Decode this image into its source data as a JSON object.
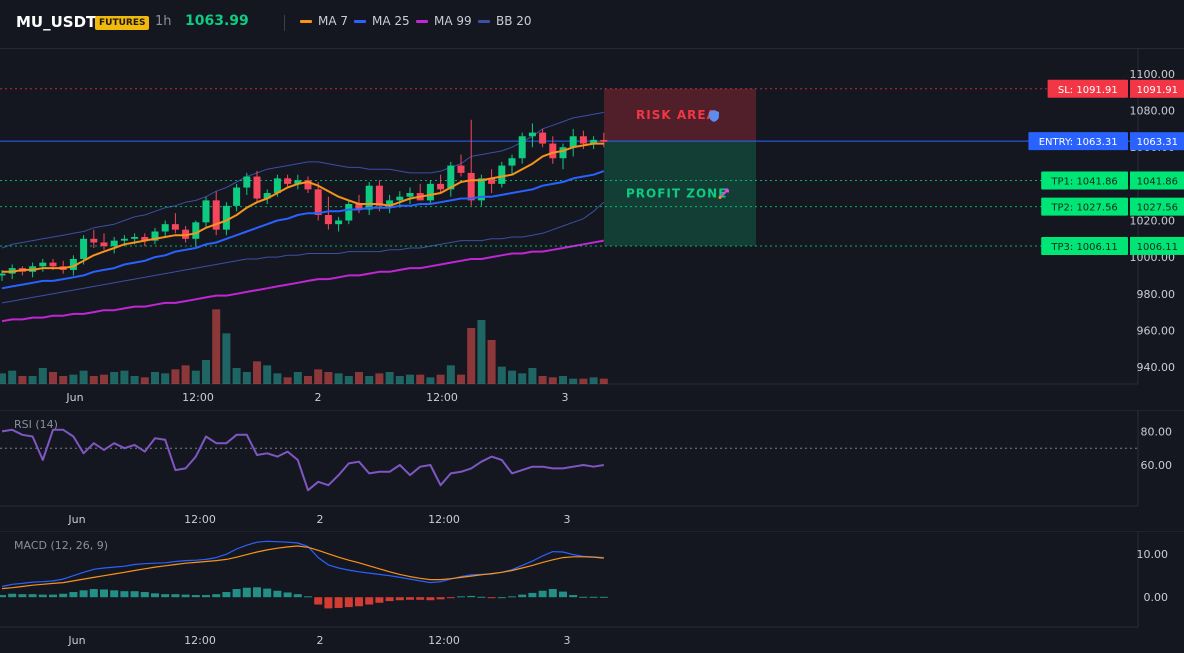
{
  "header": {
    "symbol": "MU_USDT",
    "badge": "FUTURES",
    "timeframe": "1h",
    "last_price": "1063.99",
    "indicators": [
      {
        "label": "MA 7",
        "color": "#f7931a"
      },
      {
        "label": "MA 25",
        "color": "#2962ff"
      },
      {
        "label": "MA 99",
        "color": "#c026d3"
      },
      {
        "label": "BB 20",
        "color": "#3b4fa3"
      }
    ]
  },
  "price_axis": {
    "ticks": [
      "1100.00",
      "1080.00",
      "1060.00",
      "1040.00",
      "1020.00",
      "1000.00",
      "980.00",
      "960.00",
      "940.00"
    ],
    "min": 934,
    "max": 1106
  },
  "time_axis": [
    "Jun",
    "12:00",
    "2",
    "12:00",
    "3"
  ],
  "levels": [
    {
      "name": "sl",
      "label": "SL: 1091.91",
      "price": "1091.91",
      "value": 1091.91,
      "color": "#f23645",
      "style": "dotted"
    },
    {
      "name": "entry",
      "label": "ENTRY: 1063.31",
      "price": "1063.31",
      "value": 1063.31,
      "color": "#2962ff",
      "style": "solid"
    },
    {
      "name": "tp1",
      "label": "TP1: 1041.86",
      "price": "1041.86",
      "value": 1041.86,
      "color": "#00e676",
      "style": "dotted"
    },
    {
      "name": "tp2",
      "label": "TP2: 1027.56",
      "price": "1027.56",
      "value": 1027.56,
      "color": "#00e676",
      "style": "dotted"
    },
    {
      "name": "tp3",
      "label": "TP3: 1006.11",
      "price": "1006.11",
      "value": 1006.11,
      "color": "#00e676",
      "style": "dotted"
    }
  ],
  "zones": {
    "risk": {
      "label": "RISK AREA",
      "icon": "shield-icon",
      "color": "#f23645"
    },
    "profit": {
      "label": "PROFIT ZONE",
      "icon": "rocket-icon",
      "color": "#0ecb81"
    }
  },
  "rsi": {
    "title": "RSI (14)",
    "ticks": [
      "80.00",
      "60.00"
    ],
    "min": 38,
    "max": 88,
    "level": 70,
    "color": "#7e57c2",
    "values": [
      80,
      81,
      78,
      77,
      63,
      81,
      81,
      77,
      67,
      73,
      69,
      73,
      70,
      72,
      68,
      76,
      75,
      57,
      58,
      65,
      77,
      73,
      73,
      78,
      78,
      66,
      67,
      65,
      68,
      63,
      45,
      50,
      48,
      54,
      61,
      62,
      55,
      56,
      56,
      60,
      54,
      59,
      60,
      48,
      55,
      56,
      58,
      62,
      65,
      63,
      55,
      57,
      59,
      59,
      58,
      58,
      59,
      60,
      59,
      60
    ]
  },
  "macd": {
    "title": "MACD (12, 26, 9)",
    "ticks": [
      "10.00",
      "0.00"
    ],
    "min": -6,
    "max": 14,
    "macd_color": "#2962ff",
    "signal_color": "#f7931a",
    "hist_up_color": "#26a69a",
    "hist_down_color": "#f44336"
  },
  "chart_data": {
    "type": "candlestick",
    "series": [
      {
        "name": "MA 7",
        "color": "#f7931a"
      },
      {
        "name": "MA 25",
        "color": "#2962ff"
      },
      {
        "name": "MA 99",
        "color": "#c026d3"
      },
      {
        "name": "BB 20",
        "color": "#3b4fa3"
      }
    ],
    "candles": [
      [
        990,
        993,
        987,
        991
      ],
      [
        991,
        996,
        988,
        994
      ],
      [
        994,
        995,
        990,
        992
      ],
      [
        992,
        997,
        989,
        995
      ],
      [
        995,
        999,
        992,
        997
      ],
      [
        997,
        999,
        993,
        995
      ],
      [
        995,
        998,
        991,
        993
      ],
      [
        993,
        1001,
        990,
        999
      ],
      [
        999,
        1012,
        996,
        1010
      ],
      [
        1010,
        1015,
        1005,
        1008
      ],
      [
        1008,
        1013,
        1004,
        1006
      ],
      [
        1006,
        1011,
        1002,
        1009
      ],
      [
        1009,
        1012,
        1006,
        1010
      ],
      [
        1010,
        1013,
        1007,
        1011
      ],
      [
        1011,
        1013,
        1006,
        1009
      ],
      [
        1009,
        1016,
        1007,
        1014
      ],
      [
        1014,
        1020,
        1011,
        1018
      ],
      [
        1018,
        1024,
        1013,
        1015
      ],
      [
        1015,
        1017,
        1008,
        1010
      ],
      [
        1010,
        1020,
        1006,
        1019
      ],
      [
        1019,
        1033,
        1016,
        1031
      ],
      [
        1031,
        1036,
        1012,
        1015
      ],
      [
        1015,
        1030,
        1012,
        1028
      ],
      [
        1028,
        1040,
        1025,
        1038
      ],
      [
        1038,
        1046,
        1034,
        1044
      ],
      [
        1044,
        1047,
        1030,
        1032
      ],
      [
        1032,
        1037,
        1029,
        1035
      ],
      [
        1035,
        1045,
        1033,
        1043
      ],
      [
        1043,
        1045,
        1038,
        1040
      ],
      [
        1040,
        1045,
        1037,
        1042
      ],
      [
        1042,
        1044,
        1035,
        1037
      ],
      [
        1037,
        1041,
        1020,
        1023
      ],
      [
        1023,
        1033,
        1015,
        1018
      ],
      [
        1018,
        1022,
        1014,
        1020
      ],
      [
        1020,
        1031,
        1018,
        1029
      ],
      [
        1029,
        1034,
        1024,
        1026
      ],
      [
        1026,
        1041,
        1023,
        1039
      ],
      [
        1039,
        1042,
        1025,
        1028
      ],
      [
        1028,
        1034,
        1024,
        1031
      ],
      [
        1031,
        1036,
        1027,
        1033
      ],
      [
        1033,
        1038,
        1029,
        1035
      ],
      [
        1035,
        1040,
        1031,
        1031
      ],
      [
        1031,
        1042,
        1029,
        1040
      ],
      [
        1040,
        1045,
        1035,
        1037
      ],
      [
        1037,
        1052,
        1033,
        1050
      ],
      [
        1050,
        1056,
        1044,
        1046
      ],
      [
        1046,
        1075,
        1028,
        1031
      ],
      [
        1031,
        1045,
        1028,
        1043
      ],
      [
        1043,
        1048,
        1035,
        1040
      ],
      [
        1040,
        1052,
        1038,
        1050
      ],
      [
        1050,
        1056,
        1045,
        1054
      ],
      [
        1054,
        1068,
        1051,
        1066
      ],
      [
        1066,
        1073,
        1060,
        1068
      ],
      [
        1068,
        1070,
        1060,
        1062
      ],
      [
        1062,
        1066,
        1051,
        1054
      ],
      [
        1054,
        1062,
        1048,
        1060
      ],
      [
        1060,
        1070,
        1055,
        1066
      ],
      [
        1066,
        1069,
        1059,
        1062
      ],
      [
        1062,
        1066,
        1059,
        1064
      ],
      [
        1064,
        1068,
        1060,
        1063
      ]
    ],
    "ma7": [
      992,
      992,
      993,
      993,
      994,
      994,
      994,
      995,
      998,
      1001,
      1003,
      1005,
      1007,
      1008,
      1009,
      1010,
      1011,
      1012,
      1012,
      1013,
      1016,
      1018,
      1020,
      1023,
      1027,
      1030,
      1032,
      1035,
      1038,
      1040,
      1041,
      1039,
      1036,
      1033,
      1031,
      1029,
      1029,
      1029,
      1028,
      1030,
      1032,
      1033,
      1034,
      1035,
      1038,
      1041,
      1042,
      1042,
      1043,
      1044,
      1045,
      1048,
      1051,
      1055,
      1057,
      1058,
      1060,
      1061,
      1062,
      1062
    ],
    "ma25": [
      983,
      984,
      985,
      986,
      987,
      987,
      988,
      989,
      990,
      992,
      993,
      994,
      996,
      997,
      998,
      1000,
      1001,
      1003,
      1004,
      1005,
      1007,
      1008,
      1010,
      1012,
      1014,
      1016,
      1018,
      1020,
      1021,
      1023,
      1024,
      1024,
      1025,
      1025,
      1026,
      1026,
      1027,
      1027,
      1027,
      1028,
      1028,
      1029,
      1029,
      1030,
      1031,
      1032,
      1032,
      1033,
      1033,
      1034,
      1035,
      1036,
      1037,
      1039,
      1040,
      1041,
      1043,
      1044,
      1045,
      1047
    ],
    "ma99": [
      965,
      966,
      966,
      967,
      967,
      968,
      968,
      969,
      969,
      970,
      971,
      971,
      972,
      973,
      973,
      974,
      975,
      975,
      976,
      977,
      978,
      979,
      979,
      980,
      981,
      982,
      983,
      984,
      985,
      986,
      987,
      988,
      988,
      989,
      990,
      990,
      991,
      992,
      992,
      993,
      994,
      994,
      995,
      996,
      997,
      998,
      999,
      999,
      1000,
      1001,
      1002,
      1002,
      1003,
      1003,
      1004,
      1005,
      1006,
      1007,
      1008,
      1009
    ],
    "bb_upper": [
      1005,
      1007,
      1008,
      1009,
      1010,
      1011,
      1012,
      1013,
      1014,
      1016,
      1017,
      1018,
      1020,
      1022,
      1023,
      1025,
      1027,
      1028,
      1030,
      1031,
      1033,
      1036,
      1038,
      1041,
      1044,
      1046,
      1048,
      1049,
      1050,
      1051,
      1052,
      1052,
      1051,
      1050,
      1049,
      1049,
      1048,
      1048,
      1048,
      1047,
      1046,
      1046,
      1046,
      1047,
      1049,
      1051,
      1055,
      1056,
      1057,
      1058,
      1060,
      1063,
      1066,
      1070,
      1072,
      1074,
      1076,
      1077,
      1078,
      1079
    ],
    "bb_lower": [
      975,
      976,
      977,
      978,
      979,
      980,
      981,
      982,
      983,
      984,
      985,
      986,
      987,
      988,
      989,
      990,
      991,
      992,
      993,
      994,
      995,
      996,
      997,
      998,
      999,
      999,
      1000,
      1000,
      1001,
      1001,
      1002,
      1002,
      1002,
      1002,
      1003,
      1003,
      1003,
      1003,
      1004,
      1004,
      1005,
      1005,
      1006,
      1007,
      1008,
      1009,
      1009,
      1009,
      1010,
      1010,
      1011,
      1011,
      1012,
      1013,
      1015,
      1017,
      1019,
      1021,
      1025,
      1030
    ],
    "volume": [
      8,
      10,
      6,
      6,
      12,
      9,
      6,
      7,
      10,
      6,
      7,
      9,
      10,
      6,
      5,
      9,
      8,
      11,
      14,
      10,
      18,
      56,
      38,
      12,
      9,
      17,
      14,
      8,
      5,
      9,
      6,
      11,
      9,
      8,
      6,
      9,
      6,
      8,
      9,
      6,
      7,
      7,
      5,
      7,
      14,
      7,
      42,
      48,
      33,
      13,
      10,
      8,
      12,
      6,
      5,
      6,
      4,
      4,
      5,
      4
    ],
    "macd": [
      2.5,
      3.0,
      3.2,
      3.5,
      3.6,
      3.8,
      4.2,
      5.0,
      5.8,
      6.5,
      6.8,
      7.0,
      7.2,
      7.6,
      7.8,
      7.9,
      8.0,
      8.3,
      8.5,
      8.6,
      8.8,
      9.2,
      10.0,
      11.2,
      12.1,
      12.8,
      13.0,
      12.9,
      12.8,
      12.6,
      11.8,
      9.2,
      7.5,
      6.8,
      6.3,
      5.9,
      5.6,
      5.3,
      5.0,
      4.6,
      4.2,
      3.8,
      3.4,
      3.6,
      4.2,
      4.8,
      5.2,
      5.3,
      5.4,
      5.8,
      6.4,
      7.4,
      8.4,
      9.6,
      10.6,
      10.5,
      9.9,
      9.5,
      9.4,
      9.2
    ],
    "signal": [
      2.0,
      2.2,
      2.5,
      2.8,
      3.0,
      3.2,
      3.4,
      3.8,
      4.2,
      4.6,
      5.0,
      5.4,
      5.8,
      6.2,
      6.6,
      7.0,
      7.3,
      7.6,
      7.9,
      8.1,
      8.3,
      8.5,
      8.8,
      9.3,
      9.9,
      10.5,
      11.0,
      11.4,
      11.7,
      11.9,
      11.6,
      10.9,
      10.1,
      9.3,
      8.6,
      8.0,
      7.3,
      6.6,
      5.9,
      5.3,
      4.8,
      4.4,
      4.1,
      4.1,
      4.3,
      4.6,
      4.9,
      5.2,
      5.5,
      5.8,
      6.2,
      6.8,
      7.4,
      8.1,
      8.7,
      9.2,
      9.4,
      9.4,
      9.3,
      9.1
    ],
    "hist": [
      0.5,
      0.8,
      0.7,
      0.7,
      0.6,
      0.6,
      0.8,
      1.2,
      1.6,
      1.9,
      1.8,
      1.6,
      1.4,
      1.4,
      1.2,
      0.9,
      0.7,
      0.7,
      0.6,
      0.5,
      0.5,
      0.7,
      1.2,
      1.9,
      2.2,
      2.3,
      2.0,
      1.5,
      1.1,
      0.7,
      0.2,
      -1.7,
      -2.6,
      -2.5,
      -2.3,
      -2.1,
      -1.7,
      -1.3,
      -0.9,
      -0.7,
      -0.6,
      -0.6,
      -0.7,
      -0.5,
      -0.1,
      0.2,
      0.3,
      0.1,
      -0.1,
      0.0,
      0.2,
      0.6,
      1.0,
      1.5,
      1.9,
      1.3,
      0.5,
      0.1,
      0.1,
      0.1
    ]
  }
}
